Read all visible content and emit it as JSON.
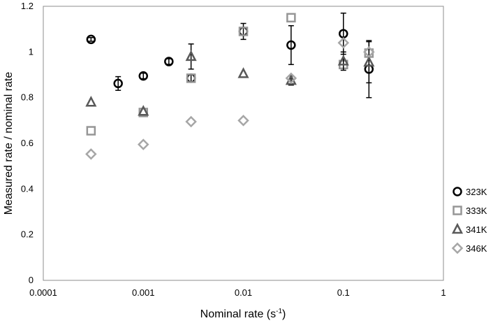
{
  "chart_data": {
    "type": "scatter",
    "title": "",
    "xlabel": "Nominal rate (s",
    "xlabel_sup": "-1",
    "xlabel_close": ")",
    "ylabel": "Measured rate / nominal rate",
    "xscale": "log",
    "xlim": [
      0.0001,
      1
    ],
    "ylim": [
      0,
      1.2
    ],
    "x_ticks": [
      0.0001,
      0.001,
      0.01,
      0.1,
      1
    ],
    "x_tick_labels": [
      "0.0001",
      "0.001",
      "0.01",
      "0.1",
      "1"
    ],
    "y_ticks": [
      0,
      0.2,
      0.4,
      0.6,
      0.8,
      1,
      1.2
    ],
    "y_tick_labels": [
      "0",
      "0.2",
      "0.4",
      "0.6",
      "0.8",
      "1",
      "1.2"
    ],
    "grid": false,
    "legend_position": "right",
    "series": [
      {
        "name": "323K",
        "marker": "circle",
        "color": "#000000",
        "points": [
          {
            "x": 0.0003,
            "y": 1.055,
            "err": 0.008
          },
          {
            "x": 0.00056,
            "y": 0.862,
            "err": 0.03
          },
          {
            "x": 0.001,
            "y": 0.895,
            "err": 0.012
          },
          {
            "x": 0.0018,
            "y": 0.958,
            "err": 0.012
          },
          {
            "x": 0.003,
            "y": 0.885,
            "err": 0.015
          },
          {
            "x": 0.01,
            "y": 1.09,
            "err": 0.035
          },
          {
            "x": 0.03,
            "y": 1.03,
            "err": 0.085
          },
          {
            "x": 0.1,
            "y": 1.08,
            "err": 0.09
          },
          {
            "x": 0.18,
            "y": 0.925,
            "err": 0.125
          }
        ]
      },
      {
        "name": "333K",
        "marker": "square",
        "color": "#969696",
        "points": [
          {
            "x": 0.0003,
            "y": 0.655,
            "err": 0
          },
          {
            "x": 0.001,
            "y": 0.735,
            "err": 0
          },
          {
            "x": 0.003,
            "y": 0.885,
            "err": 0
          },
          {
            "x": 0.01,
            "y": 1.09,
            "err": 0
          },
          {
            "x": 0.03,
            "y": 1.15,
            "err": 0
          },
          {
            "x": 0.1,
            "y": 0.945,
            "err": 0
          },
          {
            "x": 0.18,
            "y": 0.995,
            "err": 0
          }
        ]
      },
      {
        "name": "341K",
        "marker": "triangle",
        "color": "#595959",
        "points": [
          {
            "x": 0.0003,
            "y": 0.78,
            "err": 0
          },
          {
            "x": 0.001,
            "y": 0.74,
            "err": 0
          },
          {
            "x": 0.003,
            "y": 0.98,
            "err": 0.055
          },
          {
            "x": 0.01,
            "y": 0.905,
            "err": 0
          },
          {
            "x": 0.03,
            "y": 0.875,
            "err": 0.02
          },
          {
            "x": 0.1,
            "y": 0.96,
            "err": 0.04
          },
          {
            "x": 0.18,
            "y": 0.955,
            "err": 0.09
          }
        ]
      },
      {
        "name": "346K",
        "marker": "diamond",
        "color": "#a6a6a6",
        "points": [
          {
            "x": 0.0003,
            "y": 0.553,
            "err": 0
          },
          {
            "x": 0.001,
            "y": 0.595,
            "err": 0
          },
          {
            "x": 0.003,
            "y": 0.695,
            "err": 0
          },
          {
            "x": 0.01,
            "y": 0.7,
            "err": 0
          },
          {
            "x": 0.03,
            "y": 0.885,
            "err": 0
          },
          {
            "x": 0.1,
            "y": 1.04,
            "err": 0
          },
          {
            "x": 0.18,
            "y": 1.0,
            "err": 0
          }
        ]
      }
    ]
  }
}
